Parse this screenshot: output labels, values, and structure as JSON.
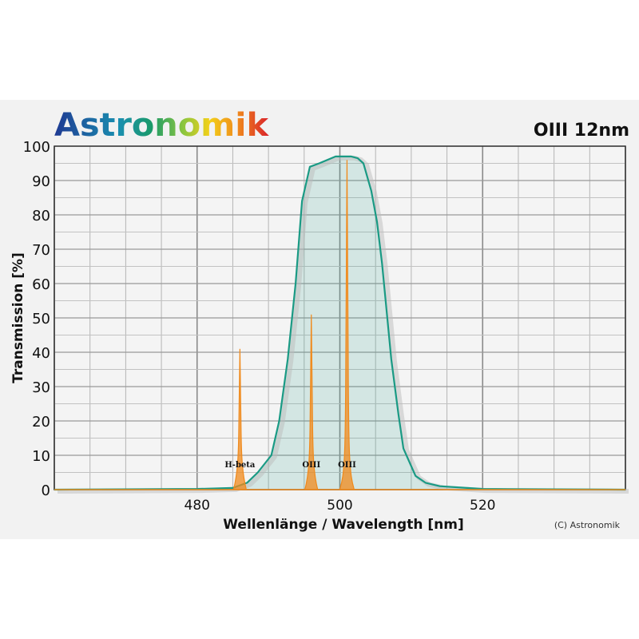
{
  "brand": {
    "logo_text": "Astronomik",
    "copyright": "(C) Astronomik"
  },
  "chart_data": {
    "type": "line",
    "title": "OIII 12nm",
    "xlabel": "Wellenlänge / Wavelength [nm]",
    "ylabel": "Transmission [%]",
    "xlim": [
      460,
      540
    ],
    "ylim": [
      0,
      100
    ],
    "xticks": [
      480,
      500,
      520
    ],
    "yticks": [
      0,
      10,
      20,
      30,
      40,
      50,
      60,
      70,
      80,
      90,
      100
    ],
    "grid": true,
    "series": [
      {
        "type": "area",
        "color": "#1a9a84",
        "x": [
          460,
          480,
          485,
          487,
          488.5,
          490.4,
          491.5,
          492.7,
          493.8,
          494.7,
          495.8,
          497.1,
          499.4,
          501.6,
          502.5,
          503.3,
          504.4,
          505.2,
          505.9,
          507.2,
          508.2,
          508.9,
          510.6,
          512,
          514,
          520,
          540
        ],
        "y": [
          0,
          0.2,
          0.5,
          2,
          5,
          10,
          20,
          38,
          60,
          84,
          94,
          95,
          97,
          97,
          96.5,
          95,
          87,
          78,
          66,
          38,
          22,
          12,
          4,
          2,
          1,
          0.2,
          0
        ]
      }
    ],
    "emission_lines": [
      {
        "label": "H-beta",
        "x": 486,
        "peak": 41,
        "color": "#f08a1c"
      },
      {
        "label": "OIII",
        "x": 496,
        "peak": 51,
        "color": "#f08a1c"
      },
      {
        "label": "OIII",
        "x": 501,
        "peak": 96,
        "color": "#f08a1c"
      }
    ]
  }
}
